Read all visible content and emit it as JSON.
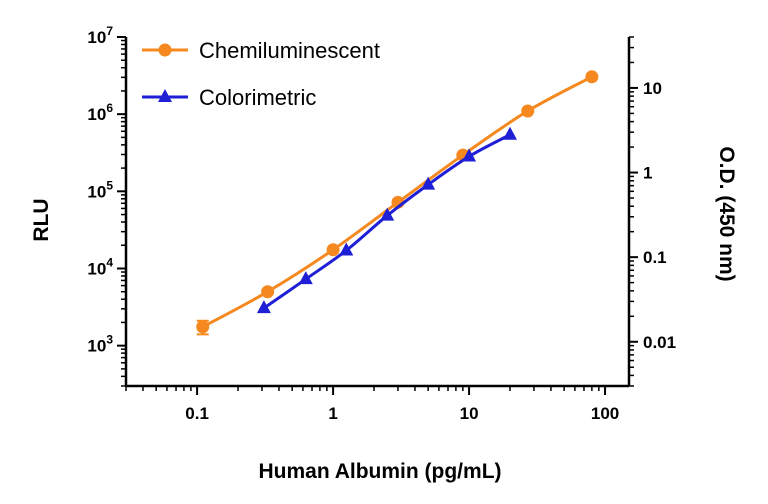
{
  "chart_data": {
    "type": "line",
    "xlabel": "Human Albumin (pg/mL)",
    "ylabel_left": "RLU",
    "ylabel_right": "O.D. (450 nm)",
    "x_scale": "log",
    "y_left_scale": "log",
    "y_right_scale": "log",
    "xlim": [
      0.03,
      150
    ],
    "ylim_left": [
      300,
      10000000
    ],
    "ylim_right": [
      0.003,
      40
    ],
    "x_ticks": [
      {
        "value": 0.1,
        "label": "0.1"
      },
      {
        "value": 1,
        "label": "1"
      },
      {
        "value": 10,
        "label": "10"
      },
      {
        "value": 100,
        "label": "100"
      }
    ],
    "y_left_ticks": [
      {
        "value": 1000,
        "base": "10",
        "exp": "3"
      },
      {
        "value": 10000,
        "base": "10",
        "exp": "4"
      },
      {
        "value": 100000,
        "base": "10",
        "exp": "5"
      },
      {
        "value": 1000000,
        "base": "10",
        "exp": "6"
      },
      {
        "value": 10000000,
        "base": "10",
        "exp": "7"
      }
    ],
    "y_right_ticks": [
      {
        "value": 0.01,
        "label": "0.01"
      },
      {
        "value": 0.1,
        "label": "0.1"
      },
      {
        "value": 1,
        "label": "1"
      },
      {
        "value": 10,
        "label": "10"
      }
    ],
    "legend_position": "top-left",
    "series": [
      {
        "name": "Chemiluminescent",
        "axis": "left",
        "marker": "circle",
        "color": "#F5891F",
        "points": [
          {
            "x": 0.11,
            "y": 1750,
            "err": 350
          },
          {
            "x": 0.33,
            "y": 5000
          },
          {
            "x": 1,
            "y": 17500
          },
          {
            "x": 3,
            "y": 72000
          },
          {
            "x": 9,
            "y": 295000
          },
          {
            "x": 27,
            "y": 1100000
          },
          {
            "x": 80,
            "y": 3050000
          }
        ]
      },
      {
        "name": "Colorimetric",
        "axis": "right",
        "marker": "triangle",
        "color": "#1F1FD6",
        "points": [
          {
            "x": 0.31,
            "y": 0.025
          },
          {
            "x": 0.63,
            "y": 0.055
          },
          {
            "x": 1.25,
            "y": 0.12
          },
          {
            "x": 2.5,
            "y": 0.31
          },
          {
            "x": 5,
            "y": 0.72
          },
          {
            "x": 10,
            "y": 1.55
          },
          {
            "x": 20,
            "y": 2.8
          }
        ]
      }
    ]
  }
}
